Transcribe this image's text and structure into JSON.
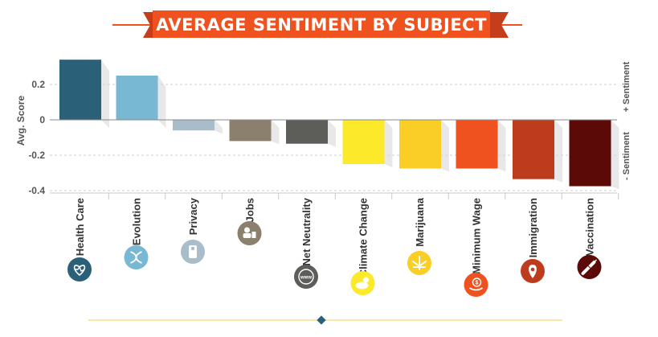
{
  "chart_data": {
    "type": "bar",
    "title": "AVERAGE SENTIMENT BY SUBJECT",
    "ylabel": "Avg. Score",
    "right_labels": {
      "positive": "+ Sentiment",
      "negative": "- Sentiment"
    },
    "ylim": [
      -0.4,
      0.35
    ],
    "yticks": [
      {
        "value": 0.2,
        "label": "0.2"
      },
      {
        "value": 0,
        "label": "0"
      },
      {
        "value": -0.2,
        "label": "-0.2"
      },
      {
        "value": -0.4,
        "label": "-0.4"
      }
    ],
    "grid": true,
    "categories": [
      "Health Care",
      "Evolution",
      "Privacy",
      "Jobs",
      "Net Neutrality",
      "Climate Change",
      "Marijuana",
      "Minimum Wage",
      "Immigration",
      "Vaccination"
    ],
    "values": [
      0.34,
      0.25,
      -0.06,
      -0.12,
      -0.135,
      -0.25,
      -0.275,
      -0.275,
      -0.335,
      -0.375
    ],
    "colors": [
      "#2b6079",
      "#79b8d3",
      "#a9bcc9",
      "#8b7f6d",
      "#5d5d5a",
      "#fbe92a",
      "#fbce27",
      "#f0521f",
      "#be3c1e",
      "#5c0a08"
    ],
    "icons": [
      "heart-pulse-icon",
      "dna-icon",
      "door-hanger-icon",
      "worker-icon",
      "www-icon",
      "cloud-sun-icon",
      "cannabis-leaf-icon",
      "money-hand-icon",
      "map-pin-icon",
      "syringe-icon"
    ]
  }
}
